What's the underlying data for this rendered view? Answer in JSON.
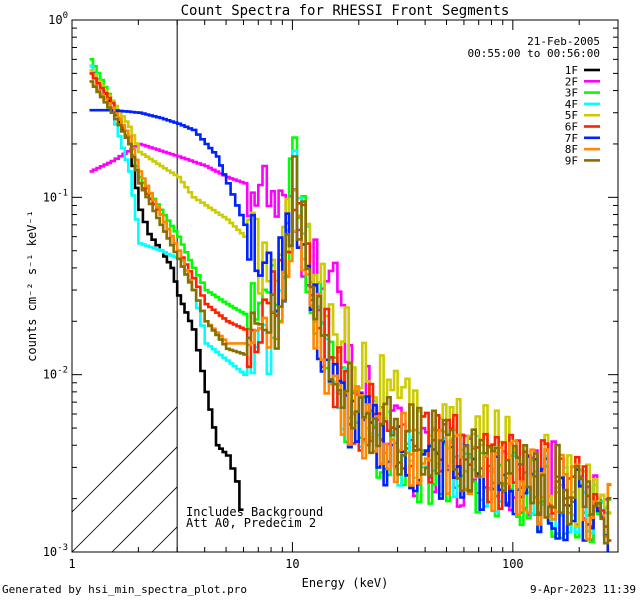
{
  "chart_data": {
    "type": "line",
    "title": "Count Spectra for RHESSI Front Segments",
    "xlabel": "Energy (keV)",
    "ylabel": "counts cm⁻² s⁻¹ keV⁻¹",
    "x_scale": "log",
    "y_scale": "log",
    "xlim": [
      1,
      300
    ],
    "ylim": [
      0.001,
      1
    ],
    "x_tick_labels": [
      {
        "value": 1,
        "label": "1"
      },
      {
        "value": 10,
        "label": "10"
      },
      {
        "value": 100,
        "label": "100"
      }
    ],
    "y_tick_labels": [
      {
        "value": 1,
        "mant": "10",
        "exp": "0"
      },
      {
        "value": 0.1,
        "mant": "10",
        "exp": "-1"
      },
      {
        "value": 0.01,
        "mant": "10",
        "exp": "-2"
      },
      {
        "value": 0.001,
        "mant": "10",
        "exp": "-3"
      }
    ],
    "date": "21-Feb-2005",
    "time_range": "00:55:00 to 00:56:00",
    "annotation_lines": [
      "Includes Background",
      "Att A0, Predecim 2"
    ],
    "hatched_region_max_kev": 3,
    "series": [
      {
        "name": "1F",
        "color": "#000000",
        "points": [
          [
            1.2,
            0.55
          ],
          [
            1.5,
            0.32
          ],
          [
            1.8,
            0.2
          ],
          [
            2.0,
            0.085
          ],
          [
            2.2,
            0.062
          ],
          [
            2.5,
            0.05
          ],
          [
            2.8,
            0.04
          ],
          [
            3.0,
            0.028
          ],
          [
            3.5,
            0.018
          ],
          [
            4.0,
            0.008
          ],
          [
            4.5,
            0.004
          ],
          [
            5.0,
            0.0035
          ],
          [
            5.5,
            0.0025
          ],
          [
            6.0,
            0.0012
          ]
        ]
      },
      {
        "name": "2F",
        "color": "#ff00ff",
        "points": [
          [
            1.2,
            0.14
          ],
          [
            1.5,
            0.16
          ],
          [
            2.0,
            0.2
          ],
          [
            3.0,
            0.17
          ],
          [
            4.0,
            0.15
          ],
          [
            5.0,
            0.13
          ],
          [
            6.0,
            0.12
          ],
          [
            7.0,
            0.11
          ],
          [
            8.0,
            0.09
          ],
          [
            9.0,
            0.07
          ],
          [
            10,
            0.06
          ],
          [
            11,
            0.05
          ],
          [
            12,
            0.04
          ],
          [
            14,
            0.03
          ],
          [
            16,
            0.025
          ],
          [
            18,
            0.015
          ],
          [
            20,
            0.008
          ],
          [
            25,
            0.005
          ],
          [
            30,
            0.004
          ],
          [
            40,
            0.003
          ],
          [
            50,
            0.003
          ],
          [
            60,
            0.003
          ],
          [
            80,
            0.003
          ],
          [
            100,
            0.0028
          ],
          [
            150,
            0.0025
          ],
          [
            200,
            0.002
          ],
          [
            280,
            0.0015
          ]
        ]
      },
      {
        "name": "3F",
        "color": "#00ff00",
        "points": [
          [
            1.2,
            0.6
          ],
          [
            1.5,
            0.35
          ],
          [
            1.8,
            0.2
          ],
          [
            2.0,
            0.13
          ],
          [
            2.5,
            0.085
          ],
          [
            3.0,
            0.06
          ],
          [
            3.5,
            0.04
          ],
          [
            4.0,
            0.03
          ],
          [
            5.0,
            0.025
          ],
          [
            6.0,
            0.022
          ],
          [
            7.0,
            0.02
          ],
          [
            8.0,
            0.025
          ],
          [
            9.0,
            0.035
          ],
          [
            10,
            0.17
          ],
          [
            11,
            0.07
          ],
          [
            12,
            0.03
          ],
          [
            14,
            0.015
          ],
          [
            16,
            0.008
          ],
          [
            20,
            0.005
          ],
          [
            25,
            0.004
          ],
          [
            30,
            0.0035
          ],
          [
            40,
            0.003
          ],
          [
            60,
            0.0028
          ],
          [
            80,
            0.0025
          ],
          [
            100,
            0.0022
          ],
          [
            150,
            0.002
          ],
          [
            200,
            0.0018
          ],
          [
            280,
            0.0015
          ]
        ]
      },
      {
        "name": "4F",
        "color": "#00ffff",
        "points": [
          [
            1.2,
            0.55
          ],
          [
            1.5,
            0.3
          ],
          [
            1.8,
            0.14
          ],
          [
            2.0,
            0.055
          ],
          [
            2.5,
            0.05
          ],
          [
            3.0,
            0.045
          ],
          [
            3.5,
            0.03
          ],
          [
            4.0,
            0.015
          ],
          [
            5.0,
            0.012
          ],
          [
            6.0,
            0.01
          ],
          [
            7.0,
            0.012
          ],
          [
            8.0,
            0.02
          ],
          [
            9.0,
            0.05
          ],
          [
            10,
            0.12
          ],
          [
            11,
            0.06
          ],
          [
            12,
            0.03
          ],
          [
            14,
            0.012
          ],
          [
            16,
            0.008
          ],
          [
            20,
            0.005
          ],
          [
            25,
            0.004
          ],
          [
            30,
            0.0035
          ],
          [
            40,
            0.0032
          ],
          [
            60,
            0.003
          ],
          [
            80,
            0.0028
          ],
          [
            100,
            0.0026
          ],
          [
            150,
            0.0022
          ],
          [
            200,
            0.002
          ],
          [
            280,
            0.0015
          ]
        ]
      },
      {
        "name": "5F",
        "color": "#cccc00",
        "points": [
          [
            1.2,
            0.52
          ],
          [
            1.5,
            0.35
          ],
          [
            1.8,
            0.25
          ],
          [
            2.0,
            0.18
          ],
          [
            2.5,
            0.15
          ],
          [
            3.0,
            0.13
          ],
          [
            3.5,
            0.1
          ],
          [
            4.0,
            0.09
          ],
          [
            5.0,
            0.075
          ],
          [
            6.0,
            0.06
          ],
          [
            7.0,
            0.045
          ],
          [
            8.0,
            0.04
          ],
          [
            9.0,
            0.05
          ],
          [
            10,
            0.1
          ],
          [
            11,
            0.06
          ],
          [
            12,
            0.04
          ],
          [
            14,
            0.025
          ],
          [
            16,
            0.02
          ],
          [
            18,
            0.015
          ],
          [
            20,
            0.012
          ],
          [
            25,
            0.008
          ],
          [
            30,
            0.006
          ],
          [
            40,
            0.005
          ],
          [
            60,
            0.0045
          ],
          [
            80,
            0.004
          ],
          [
            100,
            0.0035
          ],
          [
            150,
            0.0028
          ],
          [
            200,
            0.0022
          ],
          [
            280,
            0.0018
          ]
        ]
      },
      {
        "name": "6F",
        "color": "#ff2200",
        "points": [
          [
            1.2,
            0.5
          ],
          [
            1.5,
            0.34
          ],
          [
            1.8,
            0.2
          ],
          [
            2.0,
            0.12
          ],
          [
            2.5,
            0.08
          ],
          [
            3.0,
            0.05
          ],
          [
            3.5,
            0.035
          ],
          [
            4.0,
            0.025
          ],
          [
            5.0,
            0.02
          ],
          [
            6.0,
            0.018
          ],
          [
            7.0,
            0.02
          ],
          [
            8.0,
            0.025
          ],
          [
            9.0,
            0.04
          ],
          [
            10,
            0.11
          ],
          [
            11,
            0.06
          ],
          [
            12,
            0.03
          ],
          [
            14,
            0.015
          ],
          [
            16,
            0.009
          ],
          [
            20,
            0.006
          ],
          [
            25,
            0.005
          ],
          [
            30,
            0.004
          ],
          [
            40,
            0.0038
          ],
          [
            60,
            0.0035
          ],
          [
            80,
            0.003
          ],
          [
            100,
            0.0028
          ],
          [
            150,
            0.0025
          ],
          [
            200,
            0.002
          ],
          [
            280,
            0.0015
          ]
        ]
      },
      {
        "name": "7F",
        "color": "#0022ff",
        "points": [
          [
            1.2,
            0.31
          ],
          [
            1.5,
            0.31
          ],
          [
            2.0,
            0.3
          ],
          [
            2.5,
            0.28
          ],
          [
            3.0,
            0.26
          ],
          [
            3.5,
            0.24
          ],
          [
            4.0,
            0.2
          ],
          [
            4.5,
            0.17
          ],
          [
            5.0,
            0.12
          ],
          [
            5.5,
            0.09
          ],
          [
            6.0,
            0.07
          ],
          [
            6.5,
            0.05
          ],
          [
            7.0,
            0.04
          ],
          [
            8.0,
            0.03
          ],
          [
            9.0,
            0.04
          ],
          [
            10,
            0.12
          ],
          [
            11,
            0.05
          ],
          [
            12,
            0.025
          ],
          [
            14,
            0.012
          ],
          [
            16,
            0.007
          ],
          [
            20,
            0.005
          ],
          [
            25,
            0.004
          ],
          [
            30,
            0.0035
          ],
          [
            40,
            0.003
          ],
          [
            60,
            0.0028
          ],
          [
            80,
            0.0025
          ],
          [
            100,
            0.0023
          ],
          [
            150,
            0.002
          ],
          [
            200,
            0.0018
          ],
          [
            280,
            0.0015
          ]
        ]
      },
      {
        "name": "8F",
        "color": "#ff8800",
        "points": [
          [
            1.2,
            0.45
          ],
          [
            1.5,
            0.32
          ],
          [
            1.8,
            0.22
          ],
          [
            2.0,
            0.14
          ],
          [
            2.5,
            0.08
          ],
          [
            3.0,
            0.05
          ],
          [
            3.5,
            0.03
          ],
          [
            4.0,
            0.02
          ],
          [
            5.0,
            0.015
          ],
          [
            6.0,
            0.015
          ],
          [
            7.0,
            0.017
          ],
          [
            8.0,
            0.022
          ],
          [
            9.0,
            0.03
          ],
          [
            10,
            0.1
          ],
          [
            11,
            0.05
          ],
          [
            12,
            0.025
          ],
          [
            14,
            0.012
          ],
          [
            16,
            0.008
          ],
          [
            20,
            0.0055
          ],
          [
            25,
            0.0045
          ],
          [
            30,
            0.004
          ],
          [
            40,
            0.0035
          ],
          [
            60,
            0.003
          ],
          [
            80,
            0.0028
          ],
          [
            100,
            0.0026
          ],
          [
            150,
            0.0022
          ],
          [
            200,
            0.002
          ],
          [
            280,
            0.0016
          ]
        ]
      },
      {
        "name": "9F",
        "color": "#887000",
        "points": [
          [
            1.2,
            0.45
          ],
          [
            1.5,
            0.3
          ],
          [
            1.8,
            0.2
          ],
          [
            2.0,
            0.12
          ],
          [
            2.5,
            0.07
          ],
          [
            3.0,
            0.045
          ],
          [
            3.5,
            0.03
          ],
          [
            4.0,
            0.02
          ],
          [
            5.0,
            0.014
          ],
          [
            6.0,
            0.013
          ],
          [
            7.0,
            0.015
          ],
          [
            8.0,
            0.02
          ],
          [
            9.0,
            0.03
          ],
          [
            10,
            0.13
          ],
          [
            11,
            0.06
          ],
          [
            12,
            0.03
          ],
          [
            14,
            0.014
          ],
          [
            16,
            0.009
          ],
          [
            20,
            0.006
          ],
          [
            25,
            0.005
          ],
          [
            30,
            0.0045
          ],
          [
            40,
            0.004
          ],
          [
            60,
            0.0035
          ],
          [
            80,
            0.0032
          ],
          [
            100,
            0.003
          ],
          [
            150,
            0.0025
          ],
          [
            200,
            0.002
          ],
          [
            280,
            0.0016
          ]
        ]
      }
    ]
  },
  "footer": {
    "generated_by": "Generated by hsi_min_spectra_plot.pro",
    "timestamp": "9-Apr-2023 11:39"
  }
}
